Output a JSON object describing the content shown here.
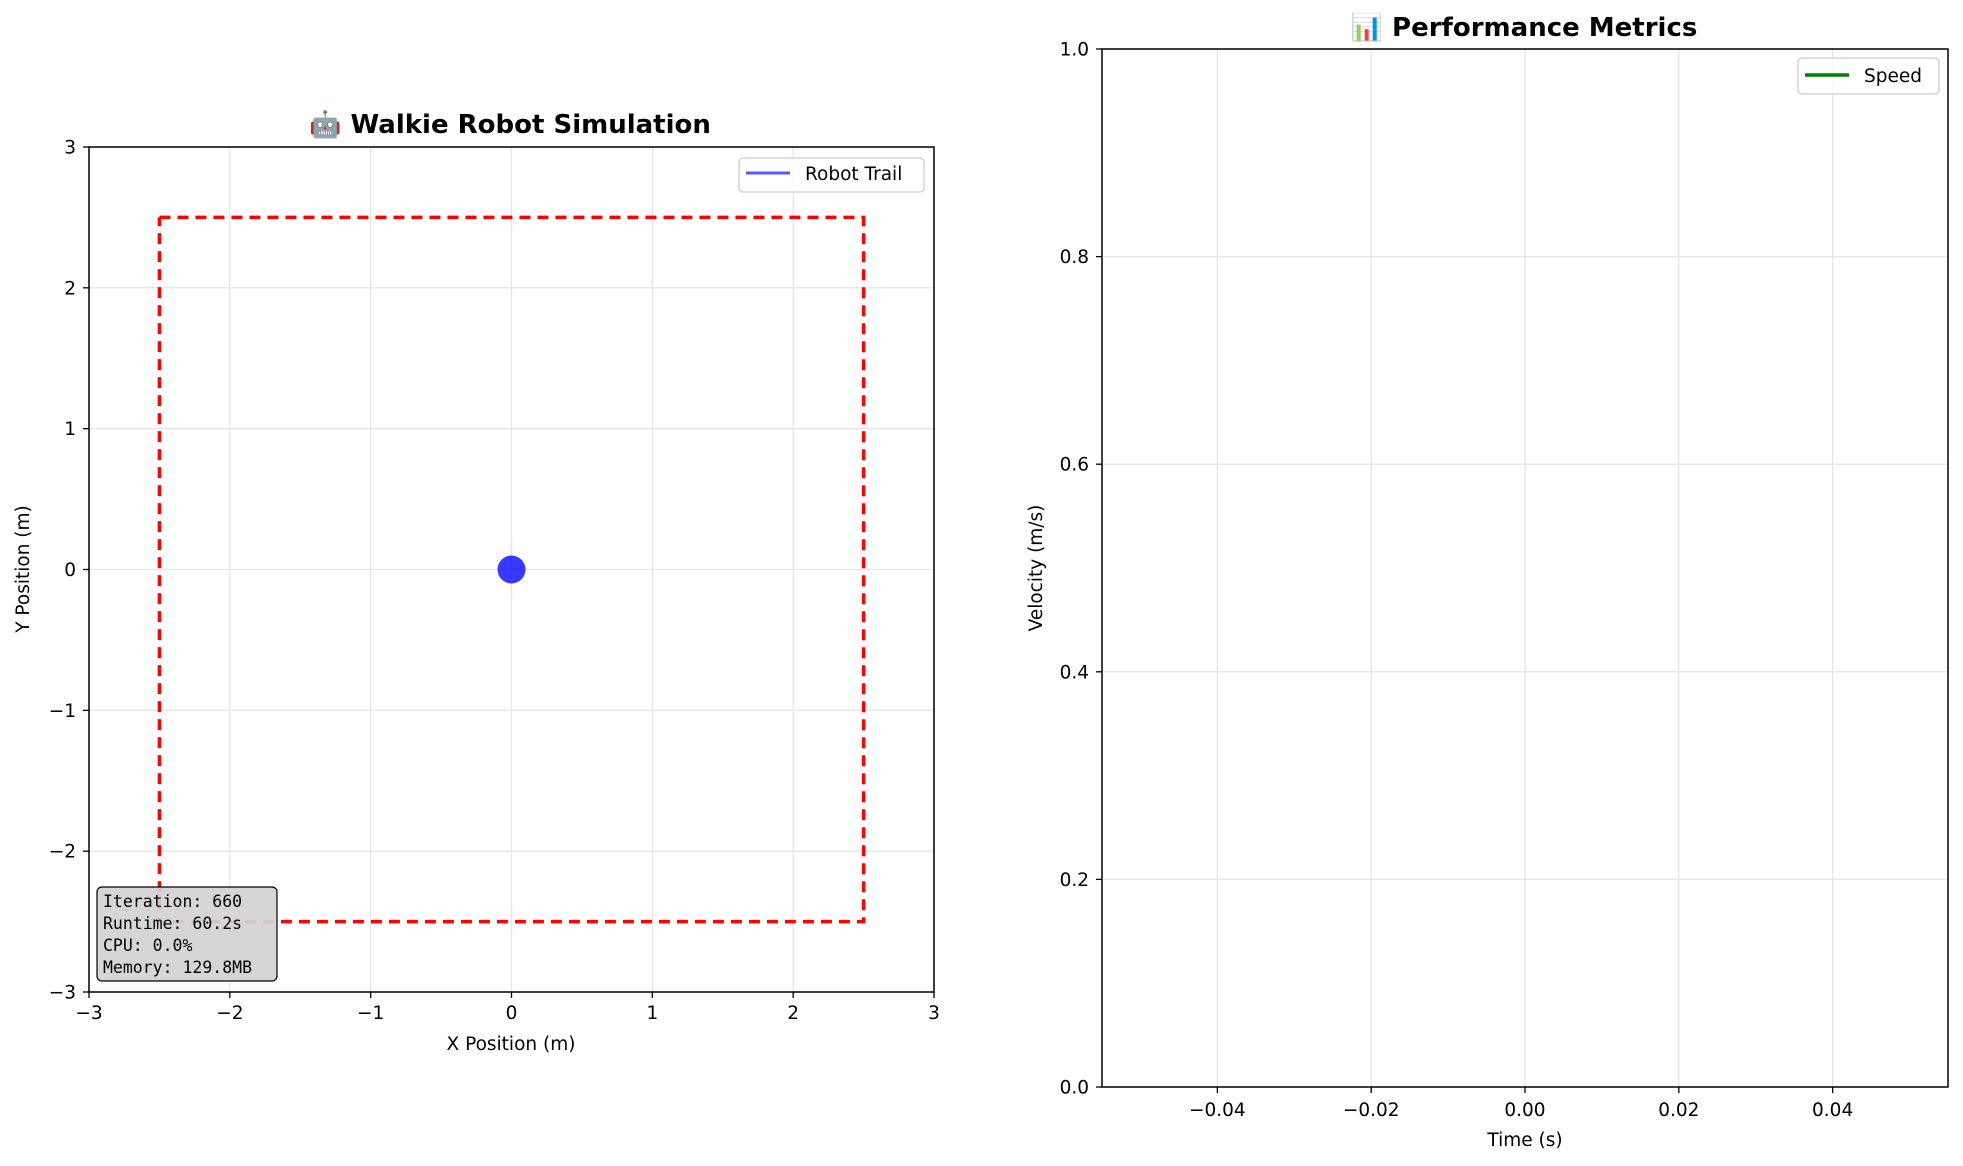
{
  "chart_data": [
    {
      "type": "scatter",
      "title": "🤖 Walkie Robot Simulation",
      "xlabel": "X Position (m)",
      "ylabel": "Y Position (m)",
      "xlim": [
        -3,
        3
      ],
      "ylim": [
        -3,
        3
      ],
      "xticks": [
        -3,
        -2,
        -1,
        0,
        1,
        2,
        3
      ],
      "yticks": [
        -3,
        -2,
        -1,
        0,
        1,
        2,
        3
      ],
      "grid": true,
      "legend": {
        "placement": "top-right",
        "entries": [
          {
            "label": "Robot Trail",
            "color": "#5a5aff"
          }
        ]
      },
      "series": [
        {
          "name": "Robot Trail",
          "x": [],
          "y": [],
          "color": "#5a5aff"
        }
      ],
      "robot": {
        "x": 0,
        "y": 0,
        "color": "#0000ff"
      },
      "boundary": {
        "x": [
          -2.5,
          2.5,
          2.5,
          -2.5,
          -2.5
        ],
        "y": [
          2.5,
          2.5,
          -2.5,
          -2.5,
          2.5
        ],
        "color": "#ff0000",
        "style": "dashed"
      },
      "info_box": {
        "placement": "bottom-left",
        "lines": [
          "Iteration: 660",
          "Runtime: 60.2s",
          "CPU: 0.0%",
          "Memory: 129.8MB"
        ]
      }
    },
    {
      "type": "line",
      "title": "📊 Performance Metrics",
      "xlabel": "Time (s)",
      "ylabel": "Velocity (m/s)",
      "xlim": [
        -0.055,
        0.055
      ],
      "ylim": [
        0,
        1
      ],
      "xticks": [
        -0.04,
        -0.02,
        0.0,
        0.02,
        0.04
      ],
      "xtick_labels": [
        "−0.04",
        "−0.02",
        "0.00",
        "0.02",
        "0.04"
      ],
      "yticks": [
        0,
        0.2,
        0.4,
        0.6,
        0.8,
        1.0
      ],
      "ytick_labels": [
        "0.0",
        "0.2",
        "0.4",
        "0.6",
        "0.8",
        "1.0"
      ],
      "grid": true,
      "legend": {
        "placement": "top-right",
        "entries": [
          {
            "label": "Speed",
            "color": "#008000"
          }
        ]
      },
      "series": [
        {
          "name": "Speed",
          "x": [],
          "y": [],
          "color": "#008000"
        }
      ]
    }
  ]
}
